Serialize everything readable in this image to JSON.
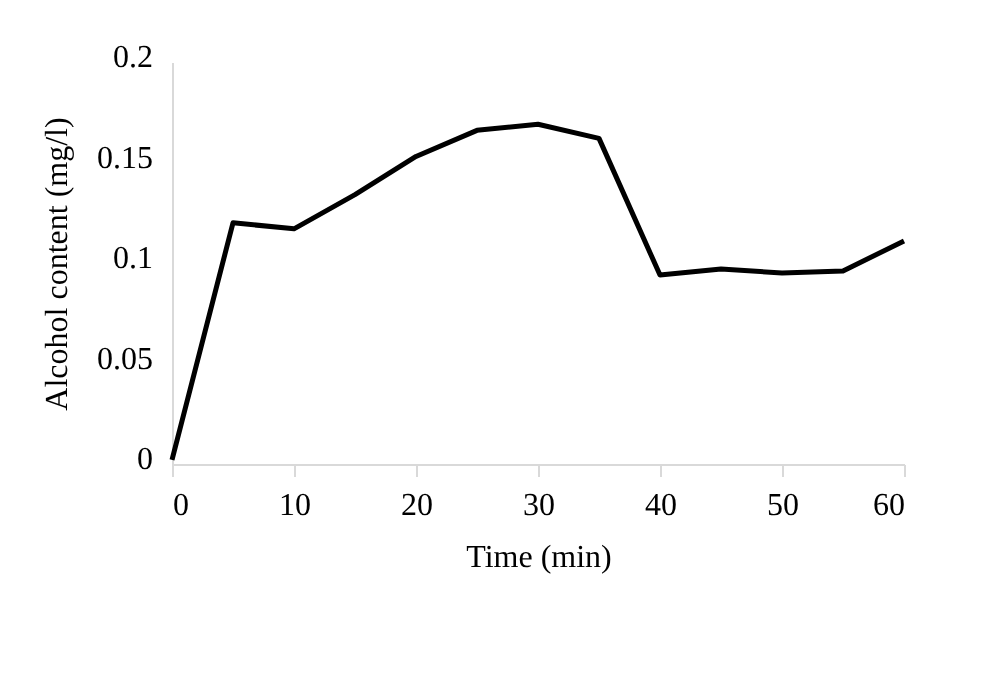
{
  "chart_data": {
    "type": "line",
    "xlabel": "Time (min)",
    "ylabel": "Alcohol content (mg/l)",
    "x": [
      0,
      5,
      10,
      15,
      20,
      25,
      30,
      35,
      40,
      45,
      50,
      55,
      60
    ],
    "series": [
      {
        "color": "#000000",
        "values": [
          0.002,
          0.12,
          0.117,
          0.134,
          0.153,
          0.166,
          0.169,
          0.162,
          0.094,
          0.097,
          0.095,
          0.096,
          0.111
        ]
      }
    ],
    "xlim": [
      0,
      60
    ],
    "xticks": [
      0,
      10,
      20,
      30,
      40,
      50,
      60
    ],
    "ylim": [
      0,
      0.2
    ],
    "yticks": [
      0,
      0.05,
      0.1,
      0.15,
      0.2
    ],
    "grid": false,
    "legend": false,
    "marker": "none",
    "line_style": "solid"
  }
}
